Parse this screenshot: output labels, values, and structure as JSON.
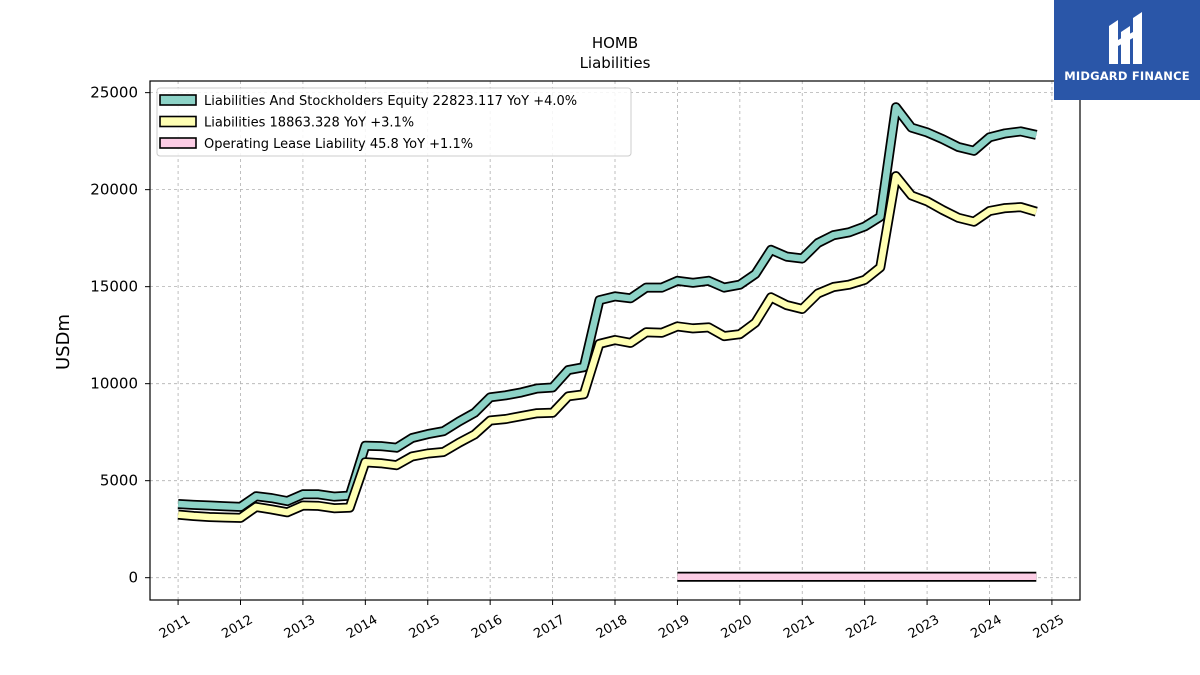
{
  "brand": {
    "name": "MIDGARD FINANCE",
    "background": "#2a56a8"
  },
  "chart_data": {
    "type": "line",
    "title": "HOMB",
    "subtitle": "Liabilities",
    "xlabel": "",
    "ylabel": "USDm",
    "xlim": [
      2010.55,
      2025.45
    ],
    "ylim": [
      -1150,
      25600
    ],
    "yticks": [
      0,
      5000,
      10000,
      15000,
      20000,
      25000
    ],
    "xticks": [
      "2011",
      "2012",
      "2013",
      "2014",
      "2015",
      "2016",
      "2017",
      "2018",
      "2019",
      "2020",
      "2021",
      "2022",
      "2023",
      "2024",
      "2025"
    ],
    "grid": true,
    "legend_position": "top-left",
    "series": [
      {
        "name": "Liabilities And Stockholders Equity",
        "legend_label": "Liabilities And Stockholders Equity  22823.117 YoY +4.0%",
        "color": "#8dd3c7",
        "points": [
          [
            2011.0,
            3800
          ],
          [
            2011.25,
            3750
          ],
          [
            2011.5,
            3720
          ],
          [
            2011.75,
            3680
          ],
          [
            2012.0,
            3650
          ],
          [
            2012.25,
            4200
          ],
          [
            2012.5,
            4100
          ],
          [
            2012.75,
            3950
          ],
          [
            2013.0,
            4300
          ],
          [
            2013.25,
            4300
          ],
          [
            2013.5,
            4180
          ],
          [
            2013.75,
            4230
          ],
          [
            2014.0,
            6800
          ],
          [
            2014.25,
            6780
          ],
          [
            2014.5,
            6700
          ],
          [
            2014.75,
            7200
          ],
          [
            2015.0,
            7400
          ],
          [
            2015.25,
            7550
          ],
          [
            2015.5,
            8050
          ],
          [
            2015.75,
            8500
          ],
          [
            2016.0,
            9300
          ],
          [
            2016.25,
            9400
          ],
          [
            2016.5,
            9550
          ],
          [
            2016.75,
            9750
          ],
          [
            2017.0,
            9800
          ],
          [
            2017.25,
            10700
          ],
          [
            2017.5,
            10850
          ],
          [
            2017.75,
            14300
          ],
          [
            2018.0,
            14500
          ],
          [
            2018.25,
            14400
          ],
          [
            2018.5,
            14950
          ],
          [
            2018.75,
            14950
          ],
          [
            2019.0,
            15300
          ],
          [
            2019.25,
            15200
          ],
          [
            2019.5,
            15300
          ],
          [
            2019.75,
            14950
          ],
          [
            2020.0,
            15100
          ],
          [
            2020.25,
            15650
          ],
          [
            2020.5,
            16900
          ],
          [
            2020.75,
            16550
          ],
          [
            2021.0,
            16450
          ],
          [
            2021.25,
            17250
          ],
          [
            2021.5,
            17650
          ],
          [
            2021.75,
            17800
          ],
          [
            2022.0,
            18100
          ],
          [
            2022.25,
            18600
          ],
          [
            2022.5,
            24250
          ],
          [
            2022.75,
            23200
          ],
          [
            2023.0,
            22950
          ],
          [
            2023.25,
            22600
          ],
          [
            2023.5,
            22200
          ],
          [
            2023.75,
            22000
          ],
          [
            2024.0,
            22700
          ],
          [
            2024.25,
            22900
          ],
          [
            2024.5,
            23000
          ],
          [
            2024.75,
            22823
          ]
        ]
      },
      {
        "name": "Liabilities",
        "legend_label": "Liabilities  18863.328 YoY +3.1%",
        "color": "#ffffb3",
        "points": [
          [
            2011.0,
            3250
          ],
          [
            2011.25,
            3180
          ],
          [
            2011.5,
            3130
          ],
          [
            2011.75,
            3100
          ],
          [
            2012.0,
            3080
          ],
          [
            2012.25,
            3650
          ],
          [
            2012.5,
            3520
          ],
          [
            2012.75,
            3370
          ],
          [
            2013.0,
            3720
          ],
          [
            2013.25,
            3700
          ],
          [
            2013.5,
            3580
          ],
          [
            2013.75,
            3610
          ],
          [
            2014.0,
            5950
          ],
          [
            2014.25,
            5900
          ],
          [
            2014.5,
            5800
          ],
          [
            2014.75,
            6250
          ],
          [
            2015.0,
            6400
          ],
          [
            2015.25,
            6480
          ],
          [
            2015.5,
            6950
          ],
          [
            2015.75,
            7380
          ],
          [
            2016.0,
            8100
          ],
          [
            2016.25,
            8180
          ],
          [
            2016.5,
            8330
          ],
          [
            2016.75,
            8480
          ],
          [
            2017.0,
            8500
          ],
          [
            2017.25,
            9350
          ],
          [
            2017.5,
            9450
          ],
          [
            2017.75,
            12050
          ],
          [
            2018.0,
            12250
          ],
          [
            2018.25,
            12100
          ],
          [
            2018.5,
            12650
          ],
          [
            2018.75,
            12620
          ],
          [
            2019.0,
            12950
          ],
          [
            2019.25,
            12850
          ],
          [
            2019.5,
            12900
          ],
          [
            2019.75,
            12450
          ],
          [
            2020.0,
            12550
          ],
          [
            2020.25,
            13150
          ],
          [
            2020.5,
            14450
          ],
          [
            2020.75,
            14050
          ],
          [
            2021.0,
            13850
          ],
          [
            2021.25,
            14650
          ],
          [
            2021.5,
            14980
          ],
          [
            2021.75,
            15100
          ],
          [
            2022.0,
            15350
          ],
          [
            2022.25,
            16000
          ],
          [
            2022.5,
            20700
          ],
          [
            2022.75,
            19700
          ],
          [
            2023.0,
            19400
          ],
          [
            2023.25,
            18950
          ],
          [
            2023.5,
            18550
          ],
          [
            2023.75,
            18350
          ],
          [
            2024.0,
            18900
          ],
          [
            2024.25,
            19050
          ],
          [
            2024.5,
            19100
          ],
          [
            2024.75,
            18863
          ]
        ]
      },
      {
        "name": "Operating Lease Liability",
        "legend_label": "Operating Lease Liability  45.8 YoY +1.1%",
        "color": "#fccde5",
        "points": [
          [
            2019.0,
            45.3
          ],
          [
            2019.25,
            45.3
          ],
          [
            2019.5,
            45.2
          ],
          [
            2019.75,
            45.2
          ],
          [
            2020.0,
            45.2
          ],
          [
            2020.25,
            45.1
          ],
          [
            2020.5,
            45.1
          ],
          [
            2020.75,
            45.1
          ],
          [
            2021.0,
            45.2
          ],
          [
            2021.25,
            45.2
          ],
          [
            2021.5,
            45.3
          ],
          [
            2021.75,
            45.3
          ],
          [
            2022.0,
            45.3
          ],
          [
            2022.25,
            45.4
          ],
          [
            2022.5,
            45.5
          ],
          [
            2022.75,
            45.4
          ],
          [
            2023.0,
            45.3
          ],
          [
            2023.25,
            45.4
          ],
          [
            2023.5,
            45.5
          ],
          [
            2023.75,
            45.6
          ],
          [
            2024.0,
            45.6
          ],
          [
            2024.25,
            45.7
          ],
          [
            2024.5,
            45.7
          ],
          [
            2024.75,
            45.8
          ]
        ]
      }
    ]
  }
}
